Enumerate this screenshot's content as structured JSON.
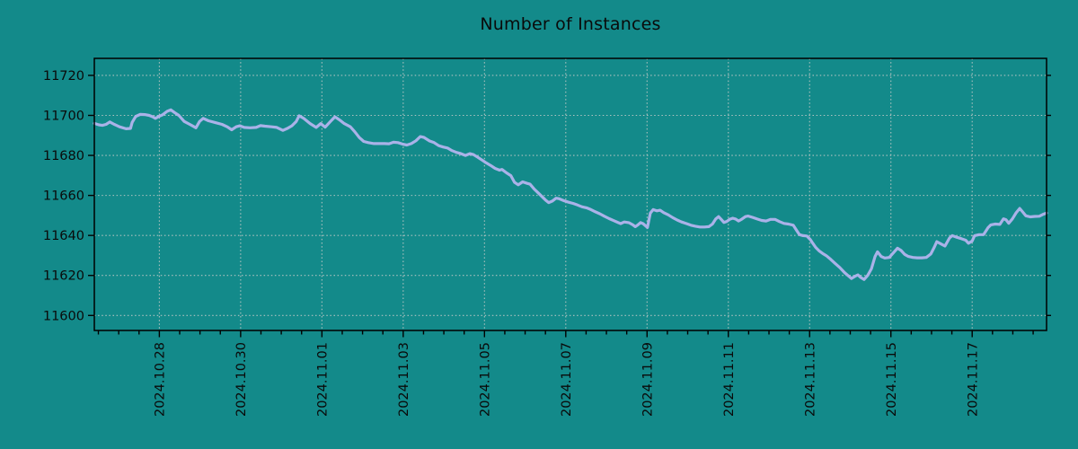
{
  "chart_data": {
    "type": "line",
    "title": "Number of Instances",
    "x_axis": {
      "unit": "days since 2024-10-28",
      "range_days": [
        -1.6,
        21.83
      ],
      "minor_tick_step_days": 0.5,
      "label_rotation_deg": 90,
      "major_ticks": [
        {
          "pos": 0,
          "label": "2024.10.28"
        },
        {
          "pos": 2,
          "label": "2024.10.30"
        },
        {
          "pos": 4,
          "label": "2024.11.01"
        },
        {
          "pos": 6,
          "label": "2024.11.03"
        },
        {
          "pos": 8,
          "label": "2024.11.05"
        },
        {
          "pos": 10,
          "label": "2024.11.07"
        },
        {
          "pos": 12,
          "label": "2024.11.09"
        },
        {
          "pos": 14,
          "label": "2024.11.11"
        },
        {
          "pos": 16,
          "label": "2024.11.13"
        },
        {
          "pos": 18,
          "label": "2024.11.15"
        },
        {
          "pos": 20,
          "label": "2024.11.17"
        }
      ]
    },
    "y_axis": {
      "range": [
        11592.5,
        11728.5
      ],
      "ticks": [
        {
          "pos": 11600,
          "label": "11600"
        },
        {
          "pos": 11620,
          "label": "11620"
        },
        {
          "pos": 11640,
          "label": "11640"
        },
        {
          "pos": 11660,
          "label": "11660"
        },
        {
          "pos": 11680,
          "label": "11680"
        },
        {
          "pos": 11700,
          "label": "11700"
        },
        {
          "pos": 11720,
          "label": "11720"
        }
      ]
    },
    "grid": {
      "visible": true,
      "style": "dotted",
      "color": "#b9c6c3"
    },
    "colors": {
      "background": "#138a8a",
      "line": "#aab2e8",
      "spine": "#000000",
      "text": "#0a0a0a"
    },
    "series": [
      {
        "color": "#aab2e8",
        "x": [
          -1.6,
          -1.49,
          -1.4,
          -1.31,
          -1.22,
          -1.11,
          -0.98,
          -0.82,
          -0.71,
          -0.67,
          -0.58,
          -0.47,
          -0.36,
          -0.25,
          -0.16,
          -0.1,
          -0.01,
          0.08,
          0.19,
          0.28,
          0.37,
          0.48,
          0.61,
          0.77,
          0.9,
          0.99,
          1.08,
          1.21,
          1.39,
          1.54,
          1.67,
          1.78,
          1.89,
          1.98,
          2.09,
          2.23,
          2.38,
          2.49,
          2.6,
          2.76,
          2.89,
          3.04,
          3.15,
          3.26,
          3.37,
          3.44,
          3.55,
          3.71,
          3.86,
          3.97,
          4.08,
          4.21,
          4.32,
          4.43,
          4.55,
          4.7,
          4.81,
          4.92,
          5.03,
          5.14,
          5.28,
          5.41,
          5.54,
          5.65,
          5.76,
          5.87,
          5.98,
          6.09,
          6.2,
          6.31,
          6.42,
          6.51,
          6.65,
          6.76,
          6.87,
          6.98,
          7.09,
          7.2,
          7.31,
          7.42,
          7.53,
          7.64,
          7.73,
          7.84,
          7.95,
          8.04,
          8.15,
          8.26,
          8.37,
          8.43,
          8.54,
          8.65,
          8.74,
          8.83,
          8.94,
          9.05,
          9.12,
          9.23,
          9.32,
          9.41,
          9.5,
          9.58,
          9.67,
          9.76,
          9.83,
          9.96,
          10.07,
          10.18,
          10.29,
          10.4,
          10.51,
          10.62,
          10.73,
          10.84,
          10.95,
          11.07,
          11.18,
          11.29,
          11.35,
          11.44,
          11.55,
          11.64,
          11.71,
          11.77,
          11.84,
          11.9,
          12.01,
          12.08,
          12.15,
          12.24,
          12.32,
          12.41,
          12.52,
          12.63,
          12.74,
          12.85,
          12.97,
          13.08,
          13.19,
          13.3,
          13.41,
          13.52,
          13.61,
          13.69,
          13.76,
          13.83,
          13.89,
          13.96,
          14.03,
          14.11,
          14.18,
          14.25,
          14.33,
          14.42,
          14.49,
          14.6,
          14.71,
          14.82,
          14.93,
          15.04,
          15.15,
          15.26,
          15.37,
          15.48,
          15.6,
          15.68,
          15.75,
          15.84,
          15.93,
          16.02,
          16.08,
          16.15,
          16.24,
          16.32,
          16.41,
          16.52,
          16.63,
          16.74,
          16.86,
          16.97,
          17.03,
          17.12,
          17.19,
          17.25,
          17.34,
          17.43,
          17.52,
          17.61,
          17.67,
          17.76,
          17.85,
          17.96,
          18.07,
          18.16,
          18.25,
          18.34,
          18.43,
          18.54,
          18.65,
          18.76,
          18.87,
          18.98,
          19.07,
          19.13,
          19.24,
          19.33,
          19.44,
          19.51,
          19.62,
          19.73,
          19.84,
          19.91,
          20.0,
          20.06,
          20.17,
          20.28,
          20.39,
          20.46,
          20.57,
          20.68,
          20.77,
          20.83,
          20.9,
          20.99,
          21.08,
          21.17,
          21.23,
          21.32,
          21.43,
          21.54,
          21.65,
          21.74,
          21.83
        ],
        "y": [
          11696,
          11695.3,
          11695,
          11695.5,
          11696.7,
          11695.5,
          11694.3,
          11693.3,
          11693.5,
          11696.5,
          11699.5,
          11700.5,
          11700.4,
          11700,
          11699.3,
          11698.5,
          11699.5,
          11700.3,
          11702,
          11702.8,
          11701.5,
          11700,
          11697,
          11695.3,
          11693.8,
          11697,
          11698.5,
          11697.3,
          11696.3,
          11695.5,
          11694.3,
          11692.8,
          11694.3,
          11694.8,
          11694,
          11693.8,
          11694,
          11694.9,
          11694.6,
          11694.3,
          11694,
          11692.5,
          11693.5,
          11694.8,
          11697,
          11699.8,
          11698.5,
          11695.9,
          11694,
          11695.9,
          11694.1,
          11697,
          11699.3,
          11697.8,
          11695.9,
          11694.3,
          11691.8,
          11688.9,
          11687,
          11686.4,
          11685.9,
          11685.9,
          11685.9,
          11685.8,
          11686.6,
          11686.4,
          11685.7,
          11685.2,
          11685.9,
          11687.3,
          11689.4,
          11689,
          11687.2,
          11686.4,
          11684.9,
          11684.2,
          11683.7,
          11682.4,
          11681.5,
          11680.9,
          11680,
          11680.9,
          11680.4,
          11679,
          11677.5,
          11676.3,
          11675,
          11673.5,
          11672.6,
          11673,
          11671.3,
          11669.9,
          11666.5,
          11665.3,
          11666.8,
          11666,
          11665.6,
          11663,
          11661.3,
          11659.5,
          11657.7,
          11656.4,
          11657.2,
          11658.6,
          11658.4,
          11657.3,
          11656.6,
          11656,
          11655.2,
          11654.3,
          11653.8,
          11652.9,
          11651.8,
          11650.8,
          11649.6,
          11648.4,
          11647.4,
          11646.4,
          11645.9,
          11646.7,
          11646.4,
          11645.4,
          11644.4,
          11645.2,
          11646.4,
          11645.9,
          11644,
          11651.1,
          11652.9,
          11652.3,
          11652.6,
          11651.4,
          11650.3,
          11648.9,
          11647.7,
          11646.7,
          11645.9,
          11645.1,
          11644.6,
          11644.2,
          11644.2,
          11644.4,
          11645.7,
          11648.2,
          11649.4,
          11647.9,
          11646.5,
          11647,
          11648,
          11648.6,
          11648.2,
          11647.2,
          11648.1,
          11649.4,
          11649.7,
          11649,
          11648.2,
          11647.5,
          11647.2,
          11648,
          11648,
          11646.9,
          11646,
          11645.7,
          11645.1,
          11642.5,
          11640.4,
          11639.9,
          11639.7,
          11637.9,
          11636,
          11634,
          11632.2,
          11631,
          11629.9,
          11628,
          11626,
          11624,
          11621.4,
          11619.5,
          11618.5,
          11619.6,
          11620.3,
          11619.1,
          11618,
          11620,
          11623.3,
          11629.5,
          11631.8,
          11629.5,
          11628.7,
          11629,
          11631.5,
          11633.6,
          11632.5,
          11630.5,
          11629.5,
          11629,
          11628.8,
          11628.8,
          11629,
          11630.7,
          11634.2,
          11636.9,
          11635.7,
          11634.7,
          11638.7,
          11639.9,
          11639.1,
          11638.4,
          11637.6,
          11636.1,
          11637.2,
          11639.9,
          11640.4,
          11640.4,
          11643.9,
          11645.3,
          11645.7,
          11645.5,
          11648.3,
          11647.9,
          11646.1,
          11648.3,
          11651.3,
          11653.5,
          11652,
          11649.8,
          11649.3,
          11649.5,
          11649.6,
          11650.5,
          11651.2
        ]
      }
    ]
  }
}
